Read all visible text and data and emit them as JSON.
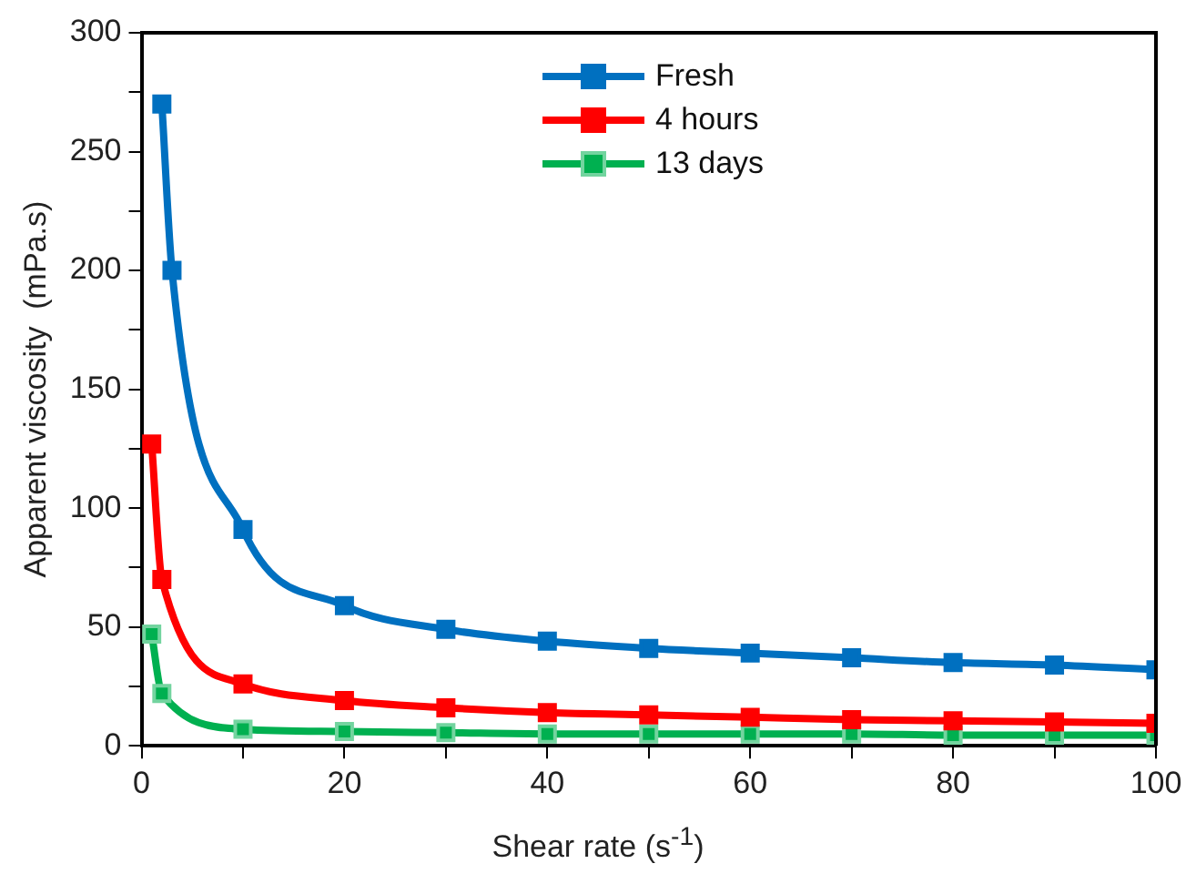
{
  "chart_data": {
    "type": "line",
    "xlabel": "Shear rate (s$^{-1}$)",
    "ylabel": "Apparent viscosity  (mPa.s)",
    "xlim": [
      0,
      100
    ],
    "xticks": [
      0,
      {
        "value": 10,
        "label": null
      },
      20,
      {
        "value": 30,
        "label": null
      },
      40,
      {
        "value": 50,
        "label": null
      },
      60,
      {
        "value": 70,
        "label": null
      },
      80,
      {
        "value": 90,
        "label": null
      },
      100
    ],
    "ylim": [
      0,
      300
    ],
    "yticks": [
      0,
      {
        "value": 25,
        "label": null
      },
      50,
      {
        "value": 75,
        "label": null
      },
      100,
      {
        "value": 125,
        "label": null
      },
      150,
      {
        "value": 175,
        "label": null
      },
      200,
      {
        "value": 225,
        "label": null
      },
      250,
      {
        "value": 275,
        "label": null
      },
      300
    ],
    "grid": false,
    "legend": "top",
    "marker": "square",
    "line_style": "solid",
    "series": [
      {
        "name": "Fresh",
        "color": "#0070c0",
        "x": [
          2,
          3,
          10,
          20,
          30,
          40,
          50,
          60,
          70,
          80,
          90,
          100
        ],
        "values": [
          270,
          200,
          91,
          59,
          49,
          44,
          41,
          39,
          37,
          35,
          34,
          32
        ]
      },
      {
        "name": "4 hours",
        "color": "#ff0000",
        "x": [
          1,
          2,
          10,
          20,
          30,
          40,
          50,
          60,
          70,
          80,
          90,
          100
        ],
        "values": [
          127,
          70,
          26,
          19,
          16,
          14,
          13,
          12,
          11,
          10.5,
          10,
          9.5
        ]
      },
      {
        "name": "13 days",
        "color": "#00b050",
        "x": [
          1,
          2,
          10,
          20,
          30,
          40,
          50,
          60,
          70,
          80,
          90,
          100
        ],
        "values": [
          47,
          22,
          7,
          6,
          5.5,
          5,
          5,
          5,
          5,
          4.5,
          4.5,
          4.5
        ]
      }
    ]
  }
}
